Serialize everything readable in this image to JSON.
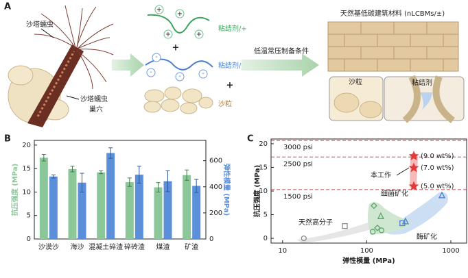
{
  "panel_a": {
    "label": "A",
    "worm": "沙塔蠕虫",
    "nest": [
      "沙塔蠕虫",
      "巢穴"
    ],
    "binder_pos": "粘结剂/+",
    "binder_neg": "粘结剂/-",
    "sand": "沙粒",
    "plus": [
      "+",
      "+"
    ],
    "condition": "低温常压制备条件",
    "product": "天然基低碳建筑材料 (nLCBMs/±)",
    "inset_sand": "沙粒",
    "inset_binder": "粘结剂"
  },
  "chart_data": [
    {
      "type": "bar",
      "label": "B",
      "categories": [
        "沙漠沙",
        "海沙",
        "混凝土碎渣",
        "碎砖渣",
        "煤渣",
        "矿渣"
      ],
      "ylabel": "抗压强度 (MPa)",
      "y2label": "弹性模量 (MPa)",
      "ylim": [
        0,
        21
      ],
      "yticks": [
        0,
        5,
        10,
        15,
        20
      ],
      "y2lim": [
        0,
        756
      ],
      "y2ticks": [
        0,
        200,
        400,
        600
      ],
      "series": [
        {
          "color": "#8cc79a",
          "values": [
            17.3,
            14.9,
            14.2,
            12.1,
            11.0,
            13.6
          ],
          "errors": [
            0.7,
            0.6,
            0.3,
            0.9,
            1.0,
            1.1
          ]
        },
        {
          "color": "#5b8fd9",
          "axis": "y2",
          "values": [
            479,
            432,
            659,
            493,
            443,
            407
          ],
          "errors": [
            12,
            72,
            40,
            65,
            80,
            50
          ]
        }
      ]
    },
    {
      "type": "scatter",
      "label": "C",
      "xlabel": "弹性模量 (MPa)",
      "ylabel": "抗压强度 (MPa)",
      "log_x": true,
      "xlim": [
        7.3,
        1540
      ],
      "xticks": [
        10,
        100,
        1000
      ],
      "ylim": [
        -1,
        21
      ],
      "yticks": [
        0,
        5,
        10,
        15,
        20
      ],
      "reference_lines": [
        {
          "value": 20.7,
          "label": "3000 psi"
        },
        {
          "value": 17.2,
          "label": "2500 psi"
        },
        {
          "value": 10.3,
          "label": "1500 psi"
        }
      ],
      "series": [
        {
          "name": "天然高分子",
          "color": "#888888",
          "region": "#dedede",
          "x": [
            17.9,
            55
          ],
          "values": [
            0,
            2.6
          ],
          "markers": [
            "circle",
            "square"
          ]
        },
        {
          "name": "细菌矿化",
          "color": "#5aa469",
          "region": "#bfe0c2",
          "x": [
            122,
            147,
            118,
            134,
            150
          ],
          "values": [
            6.9,
            4.6,
            1.4,
            2.2,
            1.7
          ],
          "markers": [
            "diamond",
            "triangle",
            "circle",
            "diamond",
            "circle"
          ]
        },
        {
          "name": "酶矿化",
          "color": "#4a7fd0",
          "region": "#bcd3ef",
          "x": [
            784,
            289,
            265
          ],
          "values": [
            9.0,
            3.5,
            3.2
          ],
          "markers": [
            "triangle",
            "triangle",
            "square"
          ]
        },
        {
          "name": "本工作",
          "color": "#e03a3a",
          "region": "#f3a3a3",
          "x": [
            363,
            363,
            363
          ],
          "values": [
            17.4,
            14.9,
            11.0
          ],
          "markers": [
            "star",
            "star",
            "star"
          ],
          "point_labels": [
            "(9.0 wt%)",
            "(7.0 wt%)",
            "(5.0 wt%)"
          ]
        }
      ]
    }
  ]
}
